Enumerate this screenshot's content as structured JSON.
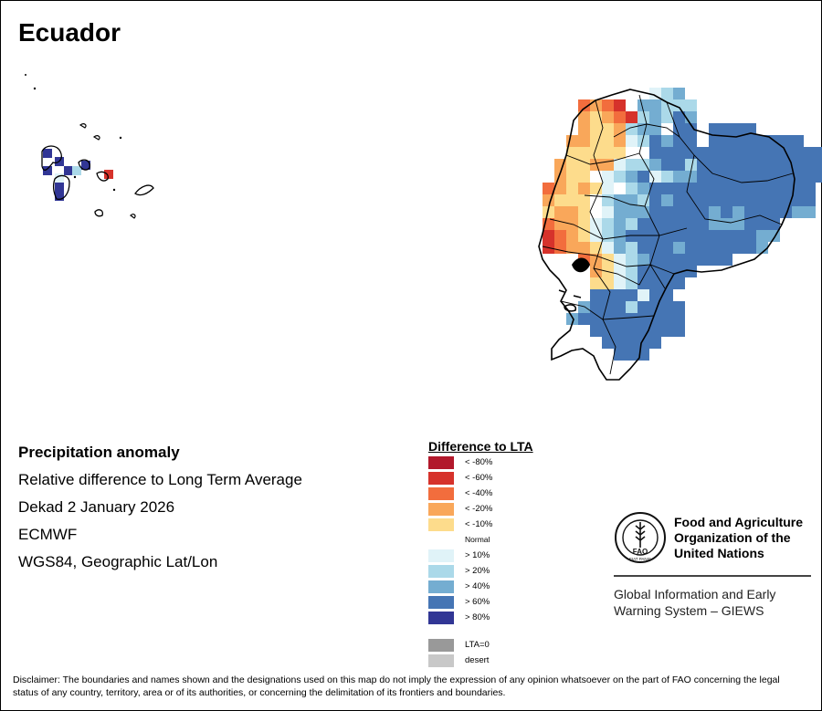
{
  "title": "Ecuador",
  "info": {
    "line1": "Precipitation anomaly",
    "line2": "Relative difference to Long Term Average",
    "line3": "Dekad 2 January 2026",
    "line4": "ECMWF",
    "line5": "WGS84, Geographic Lat/Lon"
  },
  "legend": {
    "title": "Difference to LTA",
    "items": [
      {
        "label": "< -80%",
        "color": "#b2182b"
      },
      {
        "label": "< -60%",
        "color": "#d6322b"
      },
      {
        "label": "< -40%",
        "color": "#f26d3d"
      },
      {
        "label": "< -20%",
        "color": "#f9a75a"
      },
      {
        "label": "< -10%",
        "color": "#fddc8c"
      },
      {
        "label": "Normal",
        "color": "#ffffff"
      },
      {
        "label": "> 10%",
        "color": "#e0f3f8"
      },
      {
        "label": "> 20%",
        "color": "#abd9e9"
      },
      {
        "label": "> 40%",
        "color": "#74add1"
      },
      {
        "label": "> 60%",
        "color": "#4575b4"
      },
      {
        "label": "> 80%",
        "color": "#313695"
      }
    ],
    "extra": [
      {
        "label": "LTA=0",
        "color": "#999999"
      },
      {
        "label": "desert",
        "color": "#c8c8c8"
      }
    ]
  },
  "fao": {
    "org_line1": "Food and Agriculture",
    "org_line2": "Organization of the",
    "org_line3": "United Nations",
    "logo_text": "FAO",
    "logo_motto": "FIAT PANIS",
    "giews_line1": "Global Information and Early",
    "giews_line2": "Warning System – GIEWS"
  },
  "disclaimer": "Disclaimer: The boundaries and names shown and the designations used on this map do not imply the expression of any opinion whatsoever on the part of FAO concerning the legal status of any country, territory, area or of its authorities, or concerning the delimitation of its frontiers and boundaries."
}
